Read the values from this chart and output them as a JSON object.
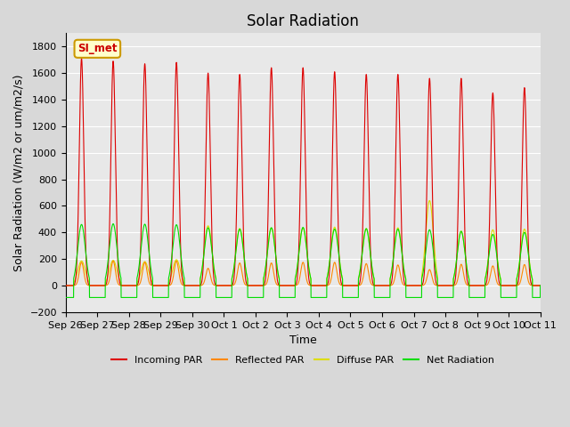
{
  "title": "Solar Radiation",
  "xlabel": "Time",
  "ylabel": "Solar Radiation (W/m2 or um/m2/s)",
  "ylim": [
    -200,
    1900
  ],
  "yticks": [
    -200,
    0,
    200,
    400,
    600,
    800,
    1000,
    1200,
    1400,
    1600,
    1800
  ],
  "x_labels": [
    "Sep 26",
    "Sep 27",
    "Sep 28",
    "Sep 29",
    "Sep 30",
    "Oct 1",
    "Oct 2",
    "Oct 3",
    "Oct 4",
    "Oct 5",
    "Oct 6",
    "Oct 7",
    "Oct 8",
    "Oct 9",
    "Oct 10",
    "Oct 11"
  ],
  "num_days": 15,
  "annotation": "SI_met",
  "annotation_color": "#cc0000",
  "annotation_bg": "#ffffcc",
  "annotation_border": "#cc9900",
  "colors": {
    "incoming": "#dd0000",
    "reflected": "#ff8800",
    "diffuse": "#dddd00",
    "net": "#00dd00"
  },
  "legend_labels": [
    "Incoming PAR",
    "Reflected PAR",
    "Diffuse PAR",
    "Net Radiation"
  ],
  "bg_color": "#e8e8e8",
  "grid_color": "#ffffff",
  "title_fontsize": 12,
  "label_fontsize": 9,
  "tick_fontsize": 8
}
